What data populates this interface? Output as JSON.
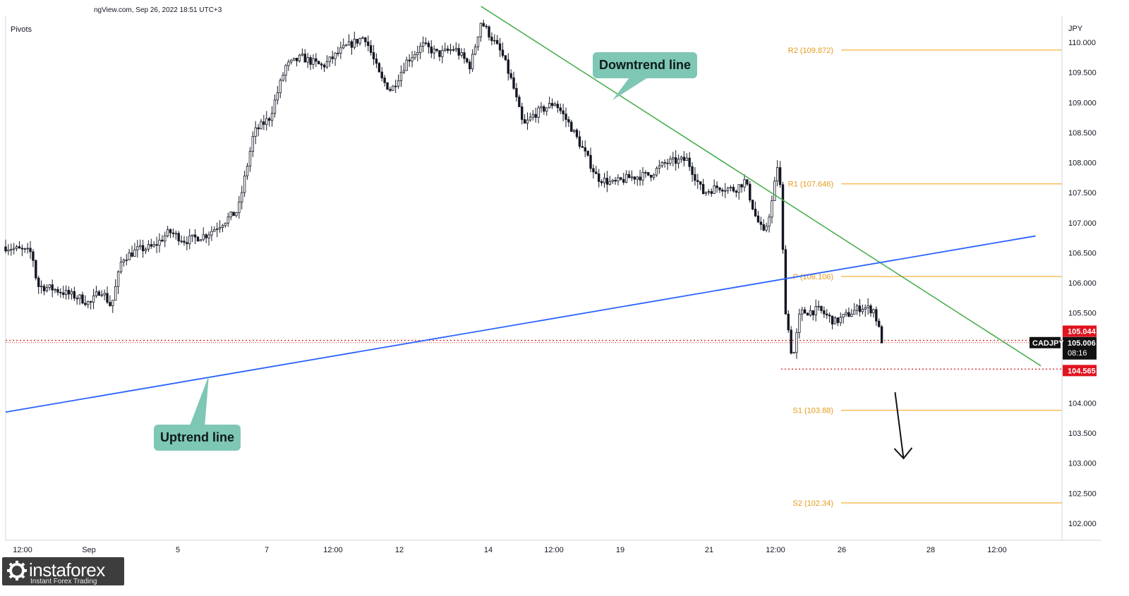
{
  "header": {
    "source_text": "ngView.com, Sep 26, 2022 18:51 UTC+3",
    "indicator": "Pivots"
  },
  "chart_data": {
    "type": "candlestick",
    "symbol": "CADJPY",
    "currency": "JPY",
    "y_range": [
      101.7,
      110.6
    ],
    "y_ticks": [
      "110.000",
      "109.500",
      "109.000",
      "108.500",
      "108.000",
      "107.500",
      "107.000",
      "106.500",
      "106.000",
      "105.500",
      "105.000",
      "104.500",
      "104.000",
      "103.500",
      "103.000",
      "102.500",
      "102.000"
    ],
    "x_ticks": [
      "12:00",
      "Sep",
      "5",
      "7",
      "12:00",
      "12",
      "14",
      "12:00",
      "19",
      "21",
      "12:00",
      "26",
      "28",
      "12:00"
    ],
    "price_path": [
      [
        0,
        106.6
      ],
      [
        0.025,
        106.5
      ],
      [
        0.03,
        105.95
      ],
      [
        0.045,
        105.9
      ],
      [
        0.07,
        105.75
      ],
      [
        0.08,
        105.65
      ],
      [
        0.09,
        105.9
      ],
      [
        0.1,
        105.6
      ],
      [
        0.11,
        106.4
      ],
      [
        0.125,
        106.55
      ],
      [
        0.14,
        106.6
      ],
      [
        0.155,
        106.85
      ],
      [
        0.17,
        106.7
      ],
      [
        0.19,
        106.8
      ],
      [
        0.205,
        107.0
      ],
      [
        0.22,
        107.2
      ],
      [
        0.235,
        108.5
      ],
      [
        0.25,
        108.75
      ],
      [
        0.265,
        109.6
      ],
      [
        0.28,
        109.75
      ],
      [
        0.3,
        109.6
      ],
      [
        0.32,
        109.9
      ],
      [
        0.34,
        110.1
      ],
      [
        0.355,
        109.4
      ],
      [
        0.365,
        109.2
      ],
      [
        0.38,
        109.7
      ],
      [
        0.395,
        109.95
      ],
      [
        0.41,
        109.8
      ],
      [
        0.425,
        109.9
      ],
      [
        0.44,
        109.6
      ],
      [
        0.45,
        110.35
      ],
      [
        0.47,
        109.8
      ],
      [
        0.48,
        109.3
      ],
      [
        0.49,
        108.6
      ],
      [
        0.5,
        108.8
      ],
      [
        0.52,
        109.0
      ],
      [
        0.535,
        108.6
      ],
      [
        0.55,
        108.1
      ],
      [
        0.56,
        107.75
      ],
      [
        0.575,
        107.65
      ],
      [
        0.59,
        107.75
      ],
      [
        0.61,
        107.8
      ],
      [
        0.625,
        108.0
      ],
      [
        0.645,
        108.05
      ],
      [
        0.66,
        107.5
      ],
      [
        0.675,
        107.6
      ],
      [
        0.69,
        107.55
      ],
      [
        0.7,
        107.7
      ],
      [
        0.71,
        107.1
      ],
      [
        0.718,
        106.8
      ],
      [
        0.725,
        107.3
      ],
      [
        0.732,
        108.1
      ],
      [
        0.738,
        105.6
      ],
      [
        0.745,
        104.7
      ],
      [
        0.752,
        105.5
      ],
      [
        0.77,
        105.55
      ],
      [
        0.785,
        105.35
      ],
      [
        0.8,
        105.5
      ],
      [
        0.81,
        105.6
      ],
      [
        0.822,
        105.55
      ],
      [
        0.83,
        105.006
      ]
    ],
    "pivots": [
      {
        "label": "R2 (109.872)",
        "value": 109.872
      },
      {
        "label": "R1 (107.646)",
        "value": 107.646
      },
      {
        "label": "P (106.106)",
        "value": 106.106
      },
      {
        "label": "S1 (103.88)",
        "value": 103.88
      },
      {
        "label": "S2 (102.34)",
        "value": 102.34
      }
    ],
    "resistance_level": 105.044,
    "support_level": 104.565,
    "last_price": "105.006",
    "countdown": "08:16",
    "price_labels": {
      "resistance": "105.044",
      "support": "104.565",
      "symbol": "CADJPY"
    },
    "downtrend_line": {
      "from": [
        0.45,
        110.6
      ],
      "to": [
        0.98,
        104.62
      ]
    },
    "uptrend_line": {
      "from": [
        0.0,
        103.85
      ],
      "to": [
        0.975,
        106.78
      ]
    },
    "projection_arrow": {
      "from": [
        0.842,
        104.18
      ],
      "to": [
        0.85,
        103.08
      ]
    }
  },
  "annotations": {
    "downtrend": "Downtrend line",
    "uptrend": "Uptrend line"
  },
  "logo": {
    "name": "instaforex",
    "tagline": "Instant Forex Trading"
  },
  "colors": {
    "candle": "#131722",
    "downtrend": "#4caf50",
    "uptrend": "#2962ff",
    "pivot": "#f59e0b",
    "pivot_text": "#e69a1a",
    "level_dotted": "#d32f2f",
    "badge_red": "#e0141f",
    "badge_dark": "#111111",
    "callout": "#7fc7b5"
  }
}
